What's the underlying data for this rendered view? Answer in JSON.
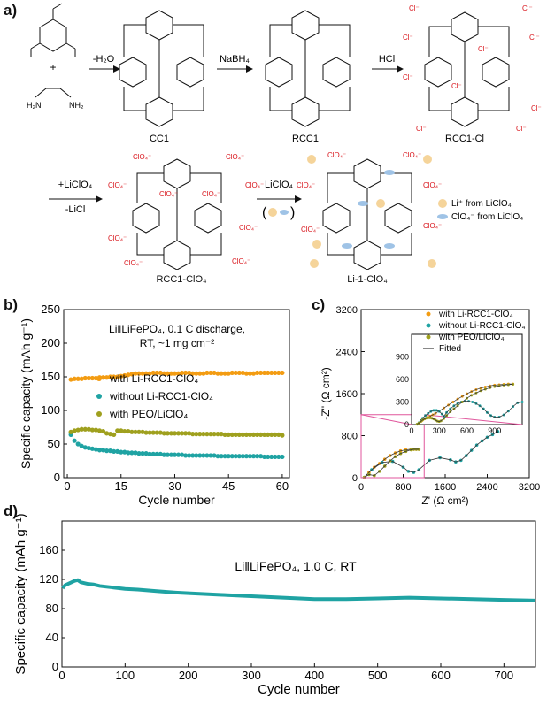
{
  "panel_a": {
    "letter": "a)",
    "step1_plus": "+",
    "arrow1_label": "-H₂O",
    "arrow2_label": "NaBH₄",
    "arrow3_label": "HCl",
    "arrow4_label_top": "+LiClO₄",
    "arrow4_label_bottom": "-LiCl",
    "arrow5_label": "LiClO₄",
    "cc1": "CC1",
    "rcc1": "RCC1",
    "rcc1_cl": "RCC1-Cl",
    "rcc1_clo4": "RCC1-ClO₄",
    "li_1_clo4": "Li-1-ClO₄",
    "legend_li": "Li⁺ from LiClO₄",
    "legend_clo4": "ClO₄⁻ from LiClO₄",
    "colors": {
      "red_label": "#d9151c",
      "li_circle": "#f5d49a",
      "clo4_ellipse": "#9fc3e6"
    }
  },
  "panel_b": {
    "letter": "b)"
  },
  "panel_c": {
    "letter": "c)"
  },
  "panel_d": {
    "letter": "d)"
  },
  "chart_data": [
    {
      "id": "b",
      "type": "scatter",
      "title": "Li||LiFePO₄, 0.1 C discharge, RT, ~1 mg cm⁻²",
      "annotation_lines": [
        "Li‖LiFePO₄, 0.1 C discharge,",
        "RT, ~1 mg cm⁻²"
      ],
      "xlabel": "Cycle number",
      "ylabel": "Specific capacity (mAh g⁻¹)",
      "xlim": [
        -1,
        62
      ],
      "ylim": [
        0,
        250
      ],
      "xticks": [
        0,
        15,
        30,
        45,
        60
      ],
      "yticks": [
        0,
        50,
        100,
        150,
        200,
        250
      ],
      "legend_placement": "middle",
      "series": [
        {
          "name": "with Li-RCC1-ClO₄",
          "color": "#f39c12",
          "x": [
            1,
            2,
            3,
            4,
            5,
            6,
            7,
            8,
            9,
            10,
            11,
            12,
            13,
            14,
            15,
            16,
            17,
            18,
            19,
            20,
            21,
            22,
            23,
            24,
            25,
            26,
            27,
            28,
            29,
            30,
            31,
            32,
            33,
            34,
            35,
            36,
            37,
            38,
            39,
            40,
            41,
            42,
            43,
            44,
            45,
            46,
            47,
            48,
            49,
            50,
            51,
            52,
            53,
            54,
            55,
            56,
            57,
            58,
            59,
            60
          ],
          "y": [
            146,
            147,
            147,
            147,
            148,
            148,
            148,
            148,
            149,
            149,
            149,
            150,
            150,
            150,
            151,
            152,
            153,
            154,
            155,
            155,
            155,
            155,
            155,
            156,
            156,
            156,
            155,
            155,
            155,
            155,
            155,
            156,
            156,
            156,
            155,
            155,
            155,
            155,
            156,
            156,
            156,
            155,
            155,
            155,
            155,
            156,
            156,
            156,
            156,
            155,
            155,
            155,
            156,
            156,
            156,
            156,
            156,
            156,
            156,
            156
          ]
        },
        {
          "name": "without Li-RCC1-ClO₄",
          "color": "#1fa3a3",
          "x": [
            1,
            2,
            3,
            4,
            5,
            6,
            7,
            8,
            9,
            10,
            11,
            12,
            13,
            14,
            15,
            16,
            17,
            18,
            19,
            20,
            21,
            22,
            23,
            24,
            25,
            26,
            27,
            28,
            29,
            30,
            31,
            32,
            33,
            34,
            35,
            36,
            37,
            38,
            39,
            40,
            41,
            42,
            43,
            44,
            45,
            46,
            47,
            48,
            49,
            50,
            51,
            52,
            53,
            54,
            55,
            56,
            57,
            58,
            59,
            60
          ],
          "y": [
            64,
            55,
            50,
            47,
            45,
            44,
            43,
            42,
            41,
            41,
            40,
            40,
            39,
            39,
            38,
            38,
            37,
            37,
            37,
            36,
            36,
            36,
            35,
            35,
            35,
            35,
            34,
            34,
            34,
            34,
            34,
            34,
            33,
            33,
            33,
            33,
            33,
            33,
            33,
            33,
            33,
            32,
            32,
            32,
            32,
            32,
            32,
            32,
            32,
            32,
            32,
            32,
            32,
            32,
            31,
            31,
            31,
            31,
            31,
            31
          ]
        },
        {
          "name": "with PEO/LiClO₄",
          "color": "#9fa01e",
          "x": [
            1,
            2,
            3,
            4,
            5,
            6,
            7,
            8,
            9,
            10,
            11,
            12,
            13,
            14,
            15,
            16,
            17,
            18,
            19,
            20,
            21,
            22,
            23,
            24,
            25,
            26,
            27,
            28,
            29,
            30,
            31,
            32,
            33,
            34,
            35,
            36,
            37,
            38,
            39,
            40,
            41,
            42,
            43,
            44,
            45,
            46,
            47,
            48,
            49,
            50,
            51,
            52,
            53,
            54,
            55,
            56,
            57,
            58,
            59,
            60
          ],
          "y": [
            68,
            70,
            71,
            72,
            72,
            72,
            71,
            71,
            70,
            69,
            66,
            65,
            64,
            70,
            70,
            69,
            69,
            68,
            68,
            68,
            68,
            67,
            67,
            67,
            67,
            67,
            66,
            66,
            66,
            66,
            66,
            66,
            66,
            66,
            65,
            65,
            65,
            65,
            65,
            65,
            65,
            65,
            65,
            64,
            64,
            64,
            64,
            64,
            64,
            64,
            64,
            64,
            64,
            64,
            64,
            64,
            64,
            64,
            64,
            63
          ]
        }
      ]
    },
    {
      "id": "c",
      "type": "scatter",
      "xlabel": "Z' (Ω cm²)",
      "ylabel": "-Z'' (Ω cm²)",
      "xlim": [
        0,
        3200
      ],
      "ylim": [
        0,
        3200
      ],
      "xticks": [
        0,
        800,
        1600,
        2400,
        3200
      ],
      "yticks": [
        0,
        800,
        1600,
        2400,
        3200
      ],
      "inset": {
        "xlim": [
          0,
          1200
        ],
        "ylim": [
          0,
          1200
        ],
        "xticks": [
          0,
          300,
          600,
          900
        ],
        "yticks": [
          0,
          300,
          600,
          900
        ],
        "series": [
          {
            "name": "with Li-RCC1-ClO₄",
            "color": "#f39c12",
            "x": [
              60,
              80,
              110,
              140,
              170,
              200,
              230,
              260,
              300,
              350,
              400,
              450,
              500,
              550,
              600,
              650,
              700,
              750,
              800,
              850,
              900,
              950,
              1000,
              1050,
              1100
            ],
            "y": [
              5,
              20,
              50,
              75,
              95,
              110,
              130,
              150,
              180,
              220,
              260,
              300,
              340,
              375,
              410,
              440,
              465,
              485,
              500,
              515,
              525,
              530,
              535,
              540,
              540
            ]
          },
          {
            "name": "without Li-RCC1-ClO₄",
            "color": "#1fa3a3",
            "x": [
              60,
              80,
              100,
              120,
              150,
              180,
              210,
              240,
              270,
              300,
              330,
              350,
              380,
              420,
              460,
              500,
              540,
              580,
              620,
              660,
              700,
              740,
              780,
              820,
              860,
              900,
              950,
              1000,
              1050,
              1100,
              1150,
              1200
            ],
            "y": [
              5,
              25,
              55,
              85,
              120,
              150,
              175,
              190,
              190,
              175,
              140,
              110,
              160,
              210,
              250,
              280,
              300,
              310,
              310,
              300,
              280,
              250,
              210,
              160,
              120,
              100,
              100,
              130,
              180,
              240,
              290,
              300
            ]
          },
          {
            "name": "with PEO/LiClO₄",
            "color": "#9fa01e",
            "x": [
              60,
              80,
              100,
              120,
              140,
              160,
              180,
              200,
              220,
              240,
              260,
              280,
              300,
              320,
              350,
              380,
              420,
              460,
              500,
              550,
              600,
              650,
              700,
              750,
              800,
              850,
              900,
              950,
              1000,
              1050,
              1100
            ],
            "y": [
              5,
              20,
              40,
              60,
              75,
              85,
              90,
              90,
              85,
              75,
              60,
              45,
              40,
              50,
              80,
              120,
              170,
              210,
              250,
              300,
              350,
              390,
              420,
              450,
              470,
              490,
              505,
              515,
              525,
              530,
              535
            ]
          }
        ]
      },
      "legend": [
        "with Li-RCC1-ClO₄",
        "without Li-RCC1-ClO₄",
        "with PEO/LiClO₄",
        "Fitted"
      ],
      "series": [
        {
          "name": "with Li-RCC1-ClO₄",
          "color": "#f39c12",
          "x": [
            60,
            150,
            250,
            350,
            450,
            550,
            650,
            750,
            850,
            950,
            1000,
            1050,
            1100
          ],
          "y": [
            5,
            100,
            200,
            270,
            350,
            420,
            470,
            510,
            530,
            540,
            540,
            540,
            540
          ]
        },
        {
          "name": "without Li-RCC1-ClO₄",
          "color": "#1fa3a3",
          "x": [
            60,
            200,
            400,
            600,
            800,
            900,
            1000,
            1100,
            1300,
            1500,
            1700,
            1800,
            1900,
            2000,
            2100,
            2200,
            2300,
            2400,
            2500,
            2600
          ],
          "y": [
            5,
            150,
            290,
            310,
            200,
            120,
            100,
            150,
            330,
            380,
            340,
            300,
            330,
            420,
            520,
            620,
            700,
            770,
            820,
            880
          ]
        },
        {
          "name": "with PEO/LiClO₄",
          "color": "#9fa01e",
          "x": [
            60,
            150,
            250,
            350,
            450,
            550,
            650,
            750,
            850,
            950,
            1000,
            1050,
            1100
          ],
          "y": [
            5,
            60,
            40,
            120,
            220,
            320,
            400,
            460,
            500,
            530,
            540,
            540,
            540
          ]
        }
      ]
    },
    {
      "id": "d",
      "type": "line",
      "annotation": "Li||LiFePO₄, 1.0 C, RT",
      "annotation_display": "Li‖LiFePO₄, 1.0 C, RT",
      "xlabel": "Cycle number",
      "ylabel": "Specific capacity (mAh g⁻¹)",
      "xlim": [
        0,
        750
      ],
      "ylim": [
        0,
        200
      ],
      "xticks": [
        0,
        100,
        200,
        300,
        400,
        500,
        600,
        700
      ],
      "yticks": [
        0,
        40,
        80,
        120,
        160
      ],
      "series": [
        {
          "name": "Li||LiFePO₄ 1.0 C",
          "color": "#1fa3a3",
          "x": [
            1,
            5,
            10,
            15,
            20,
            25,
            30,
            40,
            50,
            60,
            80,
            100,
            120,
            150,
            180,
            200,
            250,
            300,
            350,
            400,
            450,
            500,
            550,
            600,
            650,
            700,
            750
          ],
          "y": [
            108,
            112,
            114,
            116,
            118,
            119,
            116,
            114,
            113,
            111,
            109,
            107,
            106,
            104,
            102,
            101,
            99,
            97,
            95,
            93,
            93,
            94,
            95,
            94,
            93,
            92,
            91
          ]
        }
      ]
    }
  ]
}
